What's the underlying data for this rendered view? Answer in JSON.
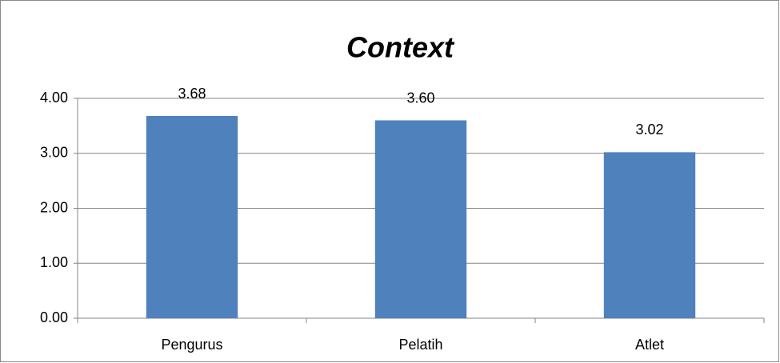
{
  "chart_data": {
    "type": "bar",
    "title": "Context",
    "categories": [
      "Pengurus",
      "Pelatih",
      "Atlet"
    ],
    "values": [
      3.68,
      3.6,
      3.02
    ],
    "value_labels": [
      "3.68",
      "3.60",
      "3.02"
    ],
    "color": "#4f81bd",
    "ylim": [
      0,
      4
    ],
    "yticks": [
      {
        "value": 0,
        "label": "0.00"
      },
      {
        "value": 1,
        "label": "1.00"
      },
      {
        "value": 2,
        "label": "2.00"
      },
      {
        "value": 3,
        "label": "3.00"
      },
      {
        "value": 4,
        "label": "4.00"
      }
    ],
    "grid": true
  }
}
